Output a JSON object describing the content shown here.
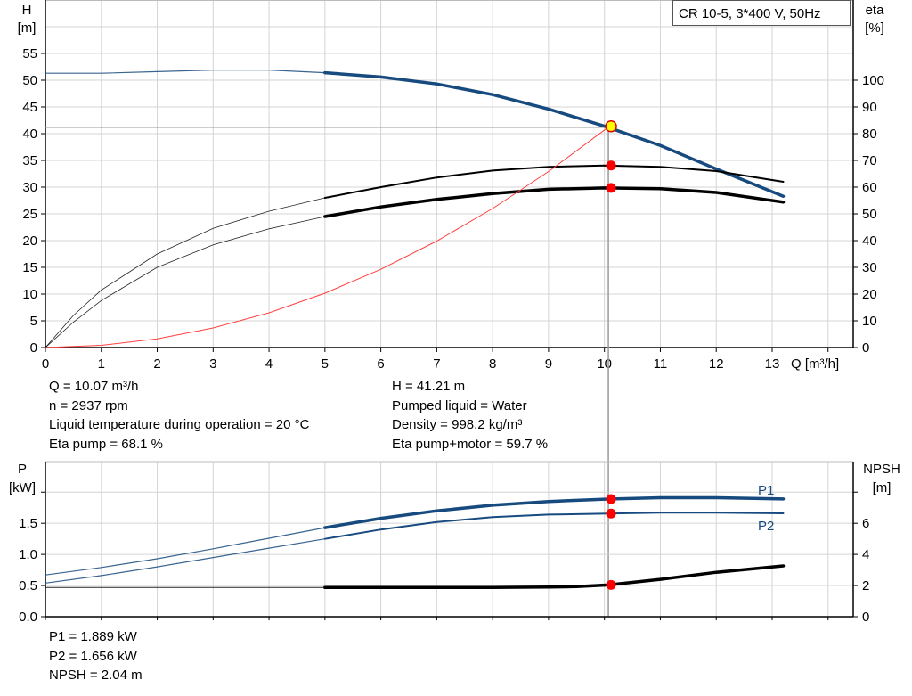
{
  "chart_data": [
    {
      "type": "line",
      "title_box": "CR 10-5, 3*400 V, 50Hz",
      "xlabel": "Q [m³/h]",
      "ylabel_left": [
        "H",
        "[m]"
      ],
      "ylabel_right": [
        "eta",
        "[%]"
      ],
      "xlim": [
        0,
        14.45
      ],
      "ylim_left": [
        0,
        65
      ],
      "ylim_right": [
        0,
        130
      ],
      "xticks": [
        0,
        1,
        2,
        3,
        4,
        5,
        6,
        7,
        8,
        9,
        10,
        11,
        12,
        13
      ],
      "yticks_left": [
        0,
        5,
        10,
        15,
        20,
        25,
        30,
        35,
        40,
        45,
        50,
        55
      ],
      "yticks_right": [
        0,
        10,
        20,
        30,
        40,
        50,
        60,
        70,
        80,
        90,
        100
      ],
      "grid": true,
      "operating_point": {
        "Q": 10.07,
        "H": 41.21,
        "eta_pump": 68.1,
        "eta_pump_motor": 59.7
      },
      "series": [
        {
          "key": "H",
          "axis": "left",
          "color": "#174a7e",
          "x": [
            0,
            1,
            2,
            3,
            4,
            5,
            6,
            7,
            8,
            9,
            10,
            11,
            12,
            13.2
          ],
          "y": [
            51.3,
            51.3,
            51.6,
            51.9,
            51.9,
            51.4,
            50.6,
            49.3,
            47.3,
            44.6,
            41.4,
            37.8,
            33.4,
            28.3
          ]
        },
        {
          "key": "eta_pump",
          "axis": "right",
          "color": "#000000",
          "x": [
            0,
            0.5,
            1,
            2,
            3,
            4,
            5,
            6,
            7,
            8,
            9,
            10,
            11,
            12,
            13.2
          ],
          "y": [
            0,
            12,
            21.5,
            35,
            44.6,
            51,
            56,
            60,
            63.6,
            66.2,
            67.6,
            68.1,
            67.6,
            66,
            62
          ]
        },
        {
          "key": "eta_pump_motor",
          "axis": "right",
          "color": "#000000",
          "x": [
            0,
            0.5,
            1,
            2,
            3,
            4,
            5,
            6,
            7,
            8,
            9,
            10,
            11,
            12,
            13.2
          ],
          "y": [
            0,
            9.5,
            17.6,
            30,
            38.4,
            44.4,
            49,
            52.6,
            55.4,
            57.6,
            59.2,
            59.7,
            59.4,
            58,
            54.4
          ]
        },
        {
          "key": "system",
          "axis": "left",
          "color": "#ff4040",
          "x": [
            0,
            1,
            2,
            3,
            4,
            5,
            6,
            7,
            8,
            9,
            10.07
          ],
          "y": [
            0,
            0.41,
            1.63,
            3.66,
            6.5,
            10.16,
            14.63,
            19.91,
            26.0,
            32.92,
            41.21
          ]
        }
      ]
    },
    {
      "type": "line",
      "ylabel_left": [
        "P",
        "[kW]"
      ],
      "ylabel_right": [
        "NPSH",
        "[m]"
      ],
      "xlim": [
        0,
        14.45
      ],
      "ylim_left": [
        0,
        2.49
      ],
      "ylim_right": [
        0,
        9.96
      ],
      "yticks_left": [
        "0.0",
        "0.5",
        "1.0",
        "1.5",
        ""
      ],
      "yticks_right": [
        "0",
        "2",
        "4",
        "6",
        ""
      ],
      "grid": true,
      "series": [
        {
          "key": "P1",
          "name": "P1",
          "axis": "left",
          "color": "#174a7e",
          "x": [
            0,
            1,
            2,
            3,
            4,
            5,
            6,
            7,
            8,
            9,
            10.07,
            11,
            12,
            13.2
          ],
          "y": [
            0.67,
            0.79,
            0.93,
            1.09,
            1.26,
            1.43,
            1.58,
            1.7,
            1.79,
            1.85,
            1.889,
            1.91,
            1.91,
            1.89
          ]
        },
        {
          "key": "P2",
          "name": "P2",
          "axis": "left",
          "color": "#174a7e",
          "x": [
            0,
            1,
            2,
            3,
            4,
            5,
            6,
            7,
            8,
            9,
            10.07,
            11,
            12,
            13.2
          ],
          "y": [
            0.54,
            0.66,
            0.8,
            0.95,
            1.1,
            1.25,
            1.4,
            1.52,
            1.6,
            1.64,
            1.656,
            1.67,
            1.67,
            1.66
          ]
        },
        {
          "key": "NPSH",
          "axis": "right",
          "color": "#000000",
          "x": [
            0,
            2,
            4,
            5,
            6,
            7,
            8,
            9,
            9.5,
            10.07,
            11,
            12,
            13.2
          ],
          "y": [
            1.88,
            1.88,
            1.88,
            1.88,
            1.88,
            1.88,
            1.88,
            1.9,
            1.93,
            2.04,
            2.4,
            2.85,
            3.26
          ]
        }
      ],
      "operating_point": {
        "Q": 10.07,
        "P1": 1.889,
        "P2": 1.656,
        "NPSH": 2.04
      }
    }
  ],
  "readout_top": {
    "left": [
      "Q = 10.07 m³/h",
      "n = 2937 rpm",
      "Liquid temperature during operation = 20 °C",
      "Eta pump = 68.1 %"
    ],
    "right": [
      "H = 41.21 m",
      "Pumped liquid = Water",
      "Density = 998.2 kg/m³",
      "Eta pump+motor = 59.7 %"
    ]
  },
  "readout_bottom": [
    "P1 = 1.889 kW",
    "P2 = 1.656 kW",
    "NPSH = 2.04 m"
  ],
  "colors": {
    "head": "#174a7e",
    "marker": "#ff0000",
    "op_marker": "#ffff00",
    "system": "#ff4040",
    "grid": "#d0d0d0"
  }
}
